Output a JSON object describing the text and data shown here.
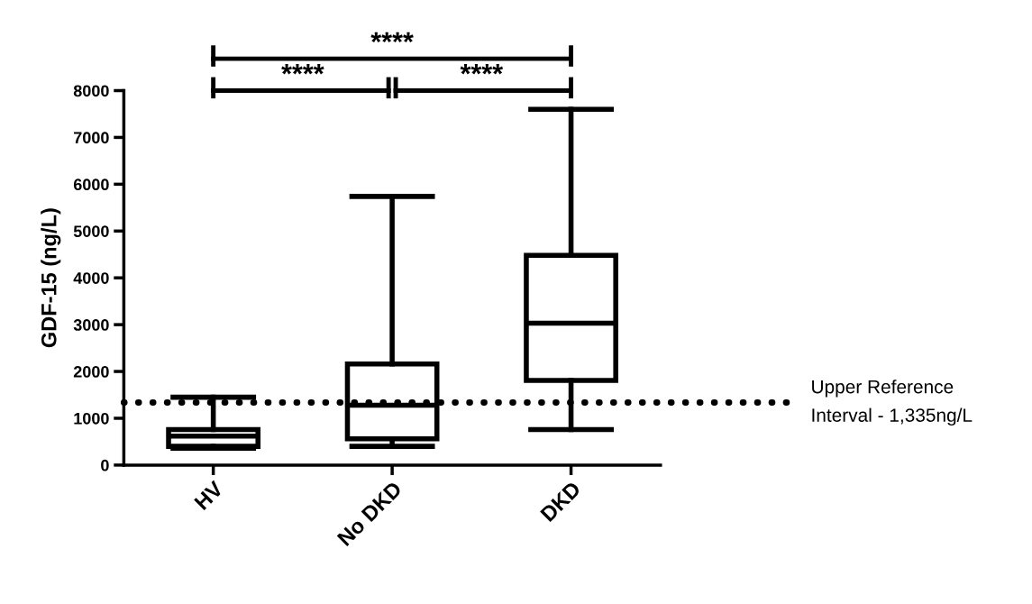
{
  "chart_data": {
    "type": "box",
    "ylabel": "GDF-15 (ng/L)",
    "categories": [
      "HV",
      "No DKD",
      "DKD"
    ],
    "boxes": [
      {
        "low": 360,
        "q1": 400,
        "median": 620,
        "q3": 760,
        "high": 1450
      },
      {
        "low": 400,
        "q1": 560,
        "median": 1280,
        "q3": 2160,
        "high": 5740
      },
      {
        "low": 760,
        "q1": 1810,
        "median": 3030,
        "q3": 4480,
        "high": 7600
      }
    ],
    "color": "#000000",
    "ylim": [
      0,
      8000
    ],
    "yticks": [
      0,
      1000,
      2000,
      3000,
      4000,
      5000,
      6000,
      7000,
      8000
    ],
    "grid": false,
    "legend": false,
    "ref_lines": [
      {
        "axis": "y",
        "value": 1335,
        "label": "Upper Reference\nInterval - 1,335ng/L",
        "color": "#000000",
        "line_style": "dotted"
      }
    ],
    "annotations": [
      "****",
      "****",
      "****"
    ]
  }
}
